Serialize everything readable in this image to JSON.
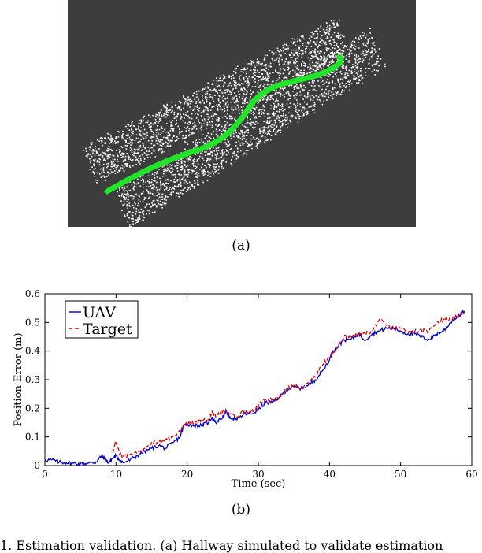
{
  "panel_a": {
    "caption": "(a)",
    "background_color": "#3d3d3d",
    "point_color": "#ffffff",
    "trajectory_color": "#22e52a"
  },
  "panel_b": {
    "caption": "(b)"
  },
  "figure_caption": "1. Estimation validation. (a) Hallway simulated to validate estimation",
  "chart_data": {
    "type": "line",
    "title": "",
    "xlabel": "Time (sec)",
    "ylabel": "Position Error (m)",
    "xlim": [
      0,
      60
    ],
    "ylim": [
      0,
      0.6
    ],
    "xticks": [
      0,
      10,
      20,
      30,
      40,
      50,
      60
    ],
    "yticks": [
      0,
      0.1,
      0.2,
      0.3,
      0.4,
      0.5,
      0.6
    ],
    "xtick_labels": [
      "0",
      "10",
      "20",
      "30",
      "40",
      "50",
      "60"
    ],
    "ytick_labels": [
      "0",
      "0.1",
      "0.2",
      "0.3",
      "0.4",
      "0.5",
      "0.6"
    ],
    "legend": {
      "placement": "top-left",
      "entries": [
        "UAV",
        "Target"
      ]
    },
    "grid": false,
    "series": [
      {
        "name": "UAV",
        "color": "#0000cc",
        "style": "solid",
        "x": [
          0,
          1,
          2,
          3,
          4,
          5,
          6,
          7,
          7.5,
          8,
          8.5,
          9,
          9.5,
          10,
          10.5,
          11,
          12,
          13,
          14,
          15,
          16,
          17,
          18,
          19,
          19.5,
          20,
          21,
          22,
          23,
          23.5,
          24,
          25,
          25.5,
          26,
          27,
          28,
          29,
          30,
          31,
          32,
          33,
          34,
          35,
          36,
          37,
          38,
          39,
          40,
          40.5,
          41,
          42,
          43,
          44,
          45,
          46,
          47,
          48,
          49,
          50,
          51,
          52,
          53,
          54,
          55,
          56,
          57,
          58,
          59
        ],
        "y": [
          0.02,
          0.02,
          0.012,
          0.01,
          0.008,
          0.006,
          0.008,
          0.01,
          0.02,
          0.035,
          0.02,
          0.01,
          0.025,
          0.035,
          0.02,
          0.01,
          0.02,
          0.035,
          0.05,
          0.06,
          0.07,
          0.06,
          0.08,
          0.1,
          0.14,
          0.145,
          0.14,
          0.14,
          0.15,
          0.17,
          0.15,
          0.17,
          0.19,
          0.17,
          0.16,
          0.18,
          0.18,
          0.195,
          0.22,
          0.22,
          0.24,
          0.265,
          0.275,
          0.27,
          0.28,
          0.3,
          0.33,
          0.37,
          0.4,
          0.41,
          0.44,
          0.44,
          0.46,
          0.44,
          0.46,
          0.47,
          0.48,
          0.48,
          0.47,
          0.46,
          0.46,
          0.45,
          0.44,
          0.46,
          0.47,
          0.5,
          0.52,
          0.54
        ]
      },
      {
        "name": "Target",
        "color": "#dd0000",
        "style": "dashed",
        "x": [
          9.5,
          10,
          10.5,
          11,
          12,
          13,
          14,
          15,
          16,
          17,
          18,
          19,
          19.5,
          20,
          21,
          22,
          23,
          23.5,
          24,
          25,
          26,
          27,
          28,
          29,
          30,
          31,
          32,
          33,
          34,
          35,
          36,
          37,
          38,
          39,
          40,
          41,
          42,
          43,
          44,
          45,
          46,
          47,
          48,
          49,
          50,
          51,
          52,
          53,
          54,
          55,
          56,
          57,
          58,
          59
        ],
        "y": [
          0.05,
          0.08,
          0.04,
          0.03,
          0.04,
          0.05,
          0.06,
          0.08,
          0.08,
          0.09,
          0.1,
          0.12,
          0.14,
          0.15,
          0.15,
          0.16,
          0.16,
          0.19,
          0.17,
          0.19,
          0.18,
          0.17,
          0.19,
          0.19,
          0.21,
          0.23,
          0.23,
          0.24,
          0.27,
          0.28,
          0.27,
          0.29,
          0.31,
          0.35,
          0.38,
          0.41,
          0.45,
          0.45,
          0.46,
          0.46,
          0.47,
          0.51,
          0.49,
          0.48,
          0.48,
          0.47,
          0.47,
          0.47,
          0.47,
          0.5,
          0.51,
          0.51,
          0.52,
          0.54
        ]
      }
    ]
  }
}
